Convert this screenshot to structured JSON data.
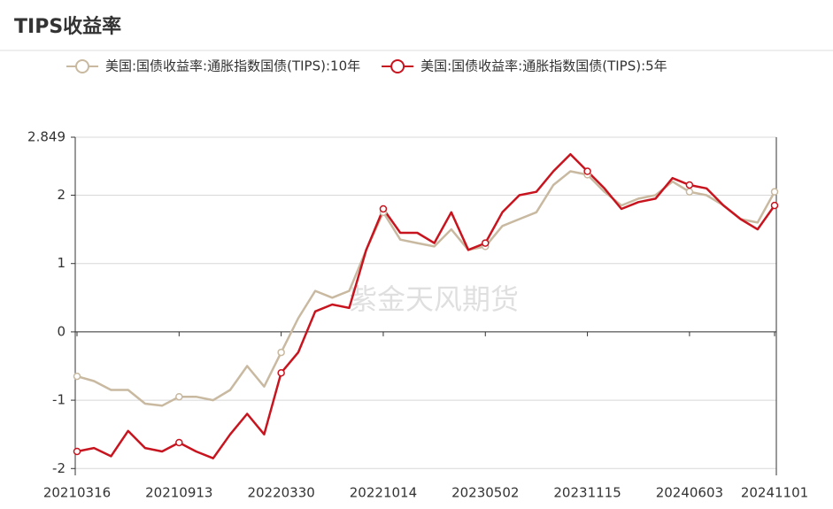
{
  "chart_data": {
    "type": "line",
    "title": "TIPS收益率",
    "watermark": "紫金天风期货",
    "categories": [
      "20210316",
      null,
      null,
      null,
      null,
      null,
      "20210913",
      null,
      null,
      null,
      null,
      null,
      "20220330",
      null,
      null,
      null,
      null,
      null,
      "20221014",
      null,
      null,
      null,
      null,
      null,
      "20230502",
      null,
      null,
      null,
      null,
      null,
      "20231115",
      null,
      null,
      null,
      null,
      null,
      "20240603",
      null,
      null,
      null,
      null,
      "20241101"
    ],
    "series": [
      {
        "name": "美国:国债收益率:通胀指数国债(TIPS):10年",
        "color": "#c8b9a0",
        "values": [
          -0.65,
          -0.72,
          -0.85,
          -0.85,
          -1.05,
          -1.08,
          -0.95,
          -0.95,
          -1.0,
          -0.85,
          -0.5,
          -0.8,
          -0.3,
          0.2,
          0.6,
          0.5,
          0.6,
          1.2,
          1.75,
          1.35,
          1.3,
          1.25,
          1.5,
          1.2,
          1.25,
          1.55,
          1.65,
          1.75,
          2.15,
          2.35,
          2.3,
          2.05,
          1.85,
          1.95,
          2.0,
          2.2,
          2.05,
          2.0,
          1.85,
          1.65,
          1.6,
          2.05
        ]
      },
      {
        "name": "美国:国债收益率:通胀指数国债(TIPS):5年",
        "color": "#c8141e",
        "values": [
          -1.75,
          -1.7,
          -1.82,
          -1.45,
          -1.7,
          -1.75,
          -1.62,
          -1.75,
          -1.85,
          -1.5,
          -1.2,
          -1.5,
          -0.6,
          -0.3,
          0.3,
          0.4,
          0.35,
          1.2,
          1.8,
          1.45,
          1.45,
          1.3,
          1.75,
          1.2,
          1.3,
          1.75,
          2.0,
          2.05,
          2.35,
          2.6,
          2.35,
          2.1,
          1.8,
          1.9,
          1.95,
          2.25,
          2.15,
          2.1,
          1.85,
          1.65,
          1.5,
          1.85
        ]
      }
    ],
    "ylim": [
      -2.1,
      2.849
    ],
    "yticks": [
      -2,
      -1,
      0,
      1,
      2,
      2.849
    ],
    "grid": true
  }
}
